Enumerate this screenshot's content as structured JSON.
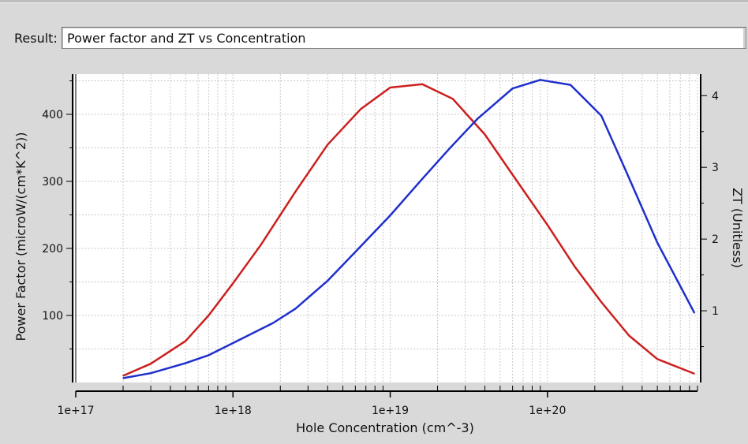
{
  "result": {
    "label": "Result:",
    "selected": "Power factor and ZT vs Concentration"
  },
  "chart_data": {
    "type": "line",
    "xlabel": "Hole Concentration (cm^-3)",
    "ylabel": "Power Factor (microW/(cm*K^2))",
    "y2label": "ZT (Unitless)",
    "xscale": "log",
    "xlim": [
      1e+17,
      9e+20
    ],
    "ylim": [
      0,
      460
    ],
    "y2lim": [
      0,
      4.3
    ],
    "xticks": [
      {
        "v": 1e+17,
        "label": "1e+17"
      },
      {
        "v": 1e+18,
        "label": "1e+18"
      },
      {
        "v": 1e+19,
        "label": "1e+19"
      },
      {
        "v": 1e+20,
        "label": "1e+20"
      }
    ],
    "yticks": [
      100,
      200,
      300,
      400
    ],
    "y2ticks": [
      1,
      2,
      3,
      4
    ],
    "grid": true,
    "series": [
      {
        "color": "#cc1f1f",
        "axis": "left",
        "x": [
          2e+17,
          3e+17,
          5e+17,
          7e+17,
          1e+18,
          1.5e+18,
          2.5e+18,
          4e+18,
          6.5e+18,
          1e+19,
          1.6e+19,
          2.5e+19,
          4e+19,
          6e+19,
          1e+20,
          1.5e+20,
          2.2e+20,
          3.3e+20,
          5e+20,
          8.6e+20
        ],
        "values": [
          10,
          28,
          62,
          100,
          148,
          205,
          285,
          355,
          408,
          440,
          445,
          423,
          370,
          310,
          235,
          172,
          120,
          70,
          35,
          13
        ]
      },
      {
        "color": "#1f2fcc",
        "axis": "right",
        "x": [
          2e+17,
          3e+17,
          5e+17,
          7e+17,
          1e+18,
          1.8e+18,
          2.5e+18,
          4e+18,
          6e+18,
          1e+19,
          1.6e+19,
          2.4e+19,
          3.6e+19,
          6e+19,
          9e+19,
          1.4e+20,
          2.2e+20,
          3.2e+20,
          5e+20,
          8.6e+20
        ],
        "values": [
          0.06,
          0.13,
          0.27,
          0.38,
          0.55,
          0.83,
          1.03,
          1.42,
          1.82,
          2.33,
          2.84,
          3.27,
          3.68,
          4.1,
          4.22,
          4.15,
          3.72,
          2.92,
          1.95,
          0.97
        ]
      }
    ]
  }
}
